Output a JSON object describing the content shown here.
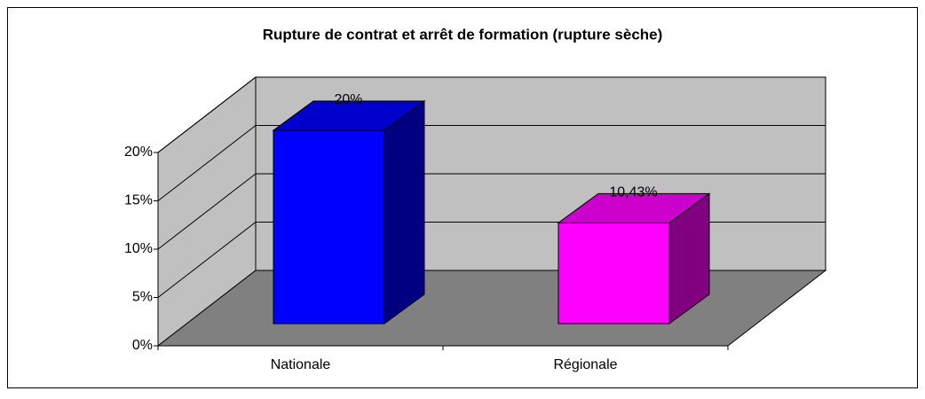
{
  "chart_data": {
    "type": "bar3d",
    "title": "Rupture de contrat et arrêt de formation (rupture sèche)",
    "categories": [
      "Nationale",
      "Régionale"
    ],
    "values": [
      20,
      10.43
    ],
    "value_labels": [
      "20%",
      "10,43%"
    ],
    "colors": [
      "#0000ff",
      "#ff00ff"
    ],
    "ylim": [
      0,
      20
    ],
    "yticks": [
      {
        "value": 0,
        "label": "0%"
      },
      {
        "value": 5,
        "label": "5%"
      },
      {
        "value": 10,
        "label": "10%"
      },
      {
        "value": 15,
        "label": "15%"
      },
      {
        "value": 20,
        "label": "20%"
      }
    ],
    "grid": true
  }
}
